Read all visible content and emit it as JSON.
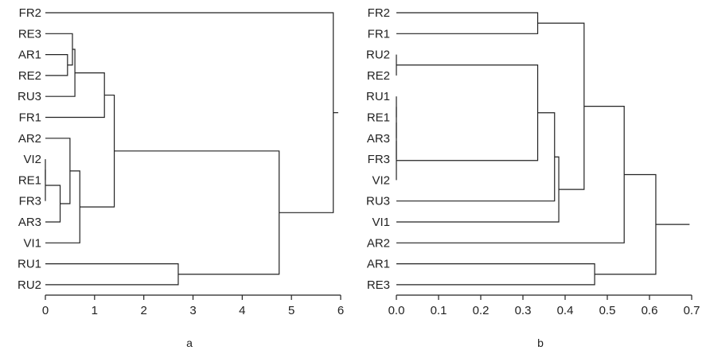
{
  "chart_data": [
    {
      "type": "dendrogram",
      "panel_label": "a",
      "leaves": [
        "FR2",
        "RE3",
        "AR1",
        "RE2",
        "RU3",
        "FR1",
        "AR2",
        "VI2",
        "RE1",
        "FR3",
        "AR3",
        "VI1",
        "RU1",
        "RU2"
      ],
      "merges": [
        {
          "a": "VI2",
          "b": "RE1",
          "height": 0.0
        },
        {
          "a": "VI2|RE1",
          "b": "FR3",
          "height": 0.0
        },
        {
          "a": "AR1",
          "b": "RE2",
          "height": 0.45
        },
        {
          "a": "RE3",
          "b": "AR1|RE2",
          "height": 0.55
        },
        {
          "a": "RE3|AR1|RE2",
          "b": "RU3",
          "height": 0.6
        },
        {
          "a": "VI2|RE1|FR3",
          "b": "AR3",
          "height": 0.3
        },
        {
          "a": "AR2",
          "b": "VI2|RE1|FR3|AR3",
          "height": 0.5
        },
        {
          "a": "AR2|VI2|RE1|FR3|AR3",
          "b": "VI1",
          "height": 0.7
        },
        {
          "a": "RE3|AR1|RE2|RU3",
          "b": "FR1",
          "height": 1.2
        },
        {
          "a": "RE3|AR1|RE2|RU3|FR1",
          "b": "AR2|VI2|RE1|FR3|AR3|VI1",
          "height": 1.4
        },
        {
          "a": "RU1",
          "b": "RU2",
          "height": 2.7
        },
        {
          "a": "RE3|AR1|RE2|RU3|FR1|AR2|VI2|RE1|FR3|AR3|VI1",
          "b": "RU1|RU2",
          "height": 4.75
        },
        {
          "a": "FR2",
          "b": "RE3|AR1|RE2|RU3|FR1|AR2|VI2|RE1|FR3|AR3|VI1|RU1|RU2",
          "height": 5.85
        }
      ],
      "root_height": 5.95,
      "xlim": [
        0,
        6
      ],
      "xticks": [
        0,
        1,
        2,
        3,
        4,
        5,
        6
      ],
      "xtick_labels": [
        "0",
        "1",
        "2",
        "3",
        "4",
        "5",
        "6"
      ]
    },
    {
      "type": "dendrogram",
      "panel_label": "b",
      "leaves": [
        "FR2",
        "FR1",
        "RU2",
        "RE2",
        "RU1",
        "RE1",
        "AR3",
        "FR3",
        "VI2",
        "RU3",
        "VI1",
        "AR2",
        "AR1",
        "RE3"
      ],
      "merges": [
        {
          "a": "RU2",
          "b": "RE2",
          "height": 0.0
        },
        {
          "a": "RU1",
          "b": "RE1",
          "height": 0.0
        },
        {
          "a": "RU1|RE1",
          "b": "AR3",
          "height": 0.0
        },
        {
          "a": "RU1|RE1|AR3",
          "b": "FR3",
          "height": 0.0
        },
        {
          "a": "RU1|RE1|AR3|FR3",
          "b": "VI2",
          "height": 0.0
        },
        {
          "a": "RU2|RE2",
          "b": "RU1|RE1|AR3|FR3|VI2",
          "height": 0.335
        },
        {
          "a": "RU2|RE2|RU1|RE1|AR3|FR3|VI2",
          "b": "RU3",
          "height": 0.375
        },
        {
          "a": "RU2|RE2|RU1|RE1|AR3|FR3|VI2|RU3",
          "b": "VI1",
          "height": 0.385
        },
        {
          "a": "FR2",
          "b": "FR1",
          "height": 0.335
        },
        {
          "a": "FR2|FR1",
          "b": "RU2|RE2|RU1|RE1|AR3|FR3|VI2|RU3|VI1",
          "height": 0.445
        },
        {
          "a": "FR2|FR1|RU2|RE2|RU1|RE1|AR3|FR3|VI2|RU3|VI1",
          "b": "AR2",
          "height": 0.54
        },
        {
          "a": "AR1",
          "b": "RE3",
          "height": 0.47
        },
        {
          "a": "FR2|FR1|RU2|RE2|RU1|RE1|AR3|FR3|VI2|RU3|VI1|AR2",
          "b": "AR1|RE3",
          "height": 0.615
        }
      ],
      "root_height": 0.695,
      "xlim": [
        0,
        0.7
      ],
      "xticks": [
        0,
        0.1,
        0.2,
        0.3,
        0.4,
        0.5,
        0.6,
        0.7
      ],
      "xtick_labels": [
        "0.0",
        "0.1",
        "0.2",
        "0.3",
        "0.4",
        "0.5",
        "0.6",
        "0.7"
      ]
    }
  ]
}
